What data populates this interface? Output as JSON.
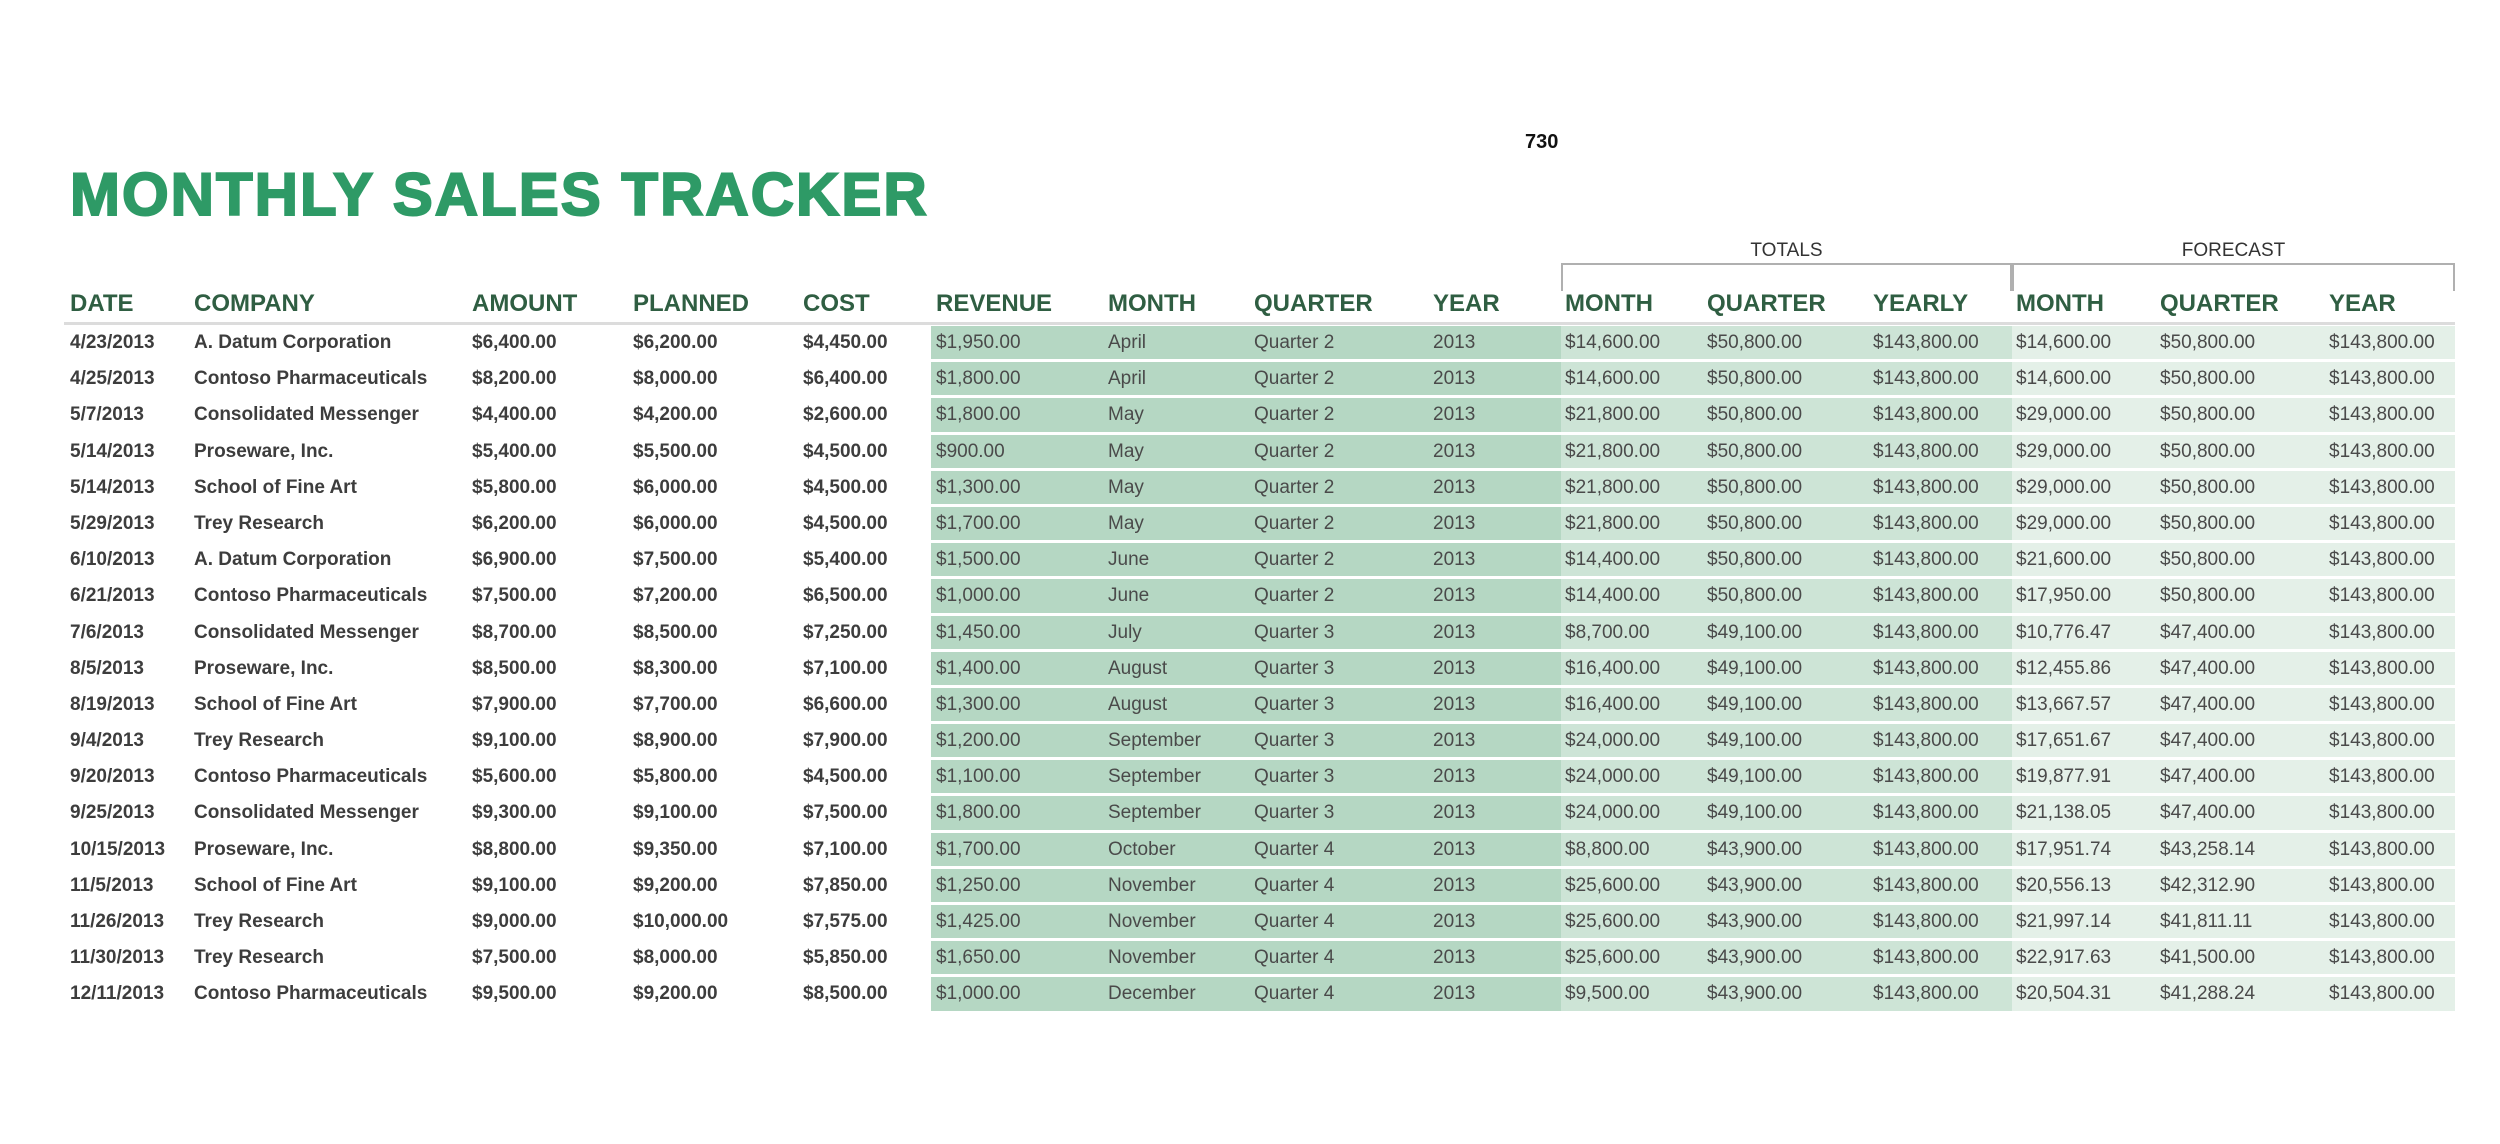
{
  "page_number": "730",
  "title": "MONTHLY SALES TRACKER",
  "groups": {
    "totals": "TOTALS",
    "forecast": "FORECAST"
  },
  "colors": {
    "title": "#2e9a66",
    "header": "#2f5e42",
    "revenue_band": "#b5d7c3",
    "totals_band": "#cde4d6",
    "forecast_band": "#e4f0e8"
  },
  "headers": [
    "DATE",
    "COMPANY",
    "AMOUNT",
    "PLANNED",
    "COST",
    "REVENUE",
    "MONTH",
    "QUARTER",
    "YEAR",
    "MONTH",
    "QUARTER",
    "YEARLY",
    "MONTH",
    "QUARTER",
    "YEAR"
  ],
  "rows": [
    [
      "4/23/2013",
      "A. Datum Corporation",
      "$6,400.00",
      "$6,200.00",
      "$4,450.00",
      "$1,950.00",
      "April",
      "Quarter 2",
      "2013",
      "$14,600.00",
      "$50,800.00",
      "$143,800.00",
      "$14,600.00",
      "$50,800.00",
      "$143,800.00"
    ],
    [
      "4/25/2013",
      "Contoso Pharmaceuticals",
      "$8,200.00",
      "$8,000.00",
      "$6,400.00",
      "$1,800.00",
      "April",
      "Quarter 2",
      "2013",
      "$14,600.00",
      "$50,800.00",
      "$143,800.00",
      "$14,600.00",
      "$50,800.00",
      "$143,800.00"
    ],
    [
      "5/7/2013",
      "Consolidated Messenger",
      "$4,400.00",
      "$4,200.00",
      "$2,600.00",
      "$1,800.00",
      "May",
      "Quarter 2",
      "2013",
      "$21,800.00",
      "$50,800.00",
      "$143,800.00",
      "$29,000.00",
      "$50,800.00",
      "$143,800.00"
    ],
    [
      "5/14/2013",
      "Proseware, Inc.",
      "$5,400.00",
      "$5,500.00",
      "$4,500.00",
      "$900.00",
      "May",
      "Quarter 2",
      "2013",
      "$21,800.00",
      "$50,800.00",
      "$143,800.00",
      "$29,000.00",
      "$50,800.00",
      "$143,800.00"
    ],
    [
      "5/14/2013",
      "School of Fine Art",
      "$5,800.00",
      "$6,000.00",
      "$4,500.00",
      "$1,300.00",
      "May",
      "Quarter 2",
      "2013",
      "$21,800.00",
      "$50,800.00",
      "$143,800.00",
      "$29,000.00",
      "$50,800.00",
      "$143,800.00"
    ],
    [
      "5/29/2013",
      "Trey Research",
      "$6,200.00",
      "$6,000.00",
      "$4,500.00",
      "$1,700.00",
      "May",
      "Quarter 2",
      "2013",
      "$21,800.00",
      "$50,800.00",
      "$143,800.00",
      "$29,000.00",
      "$50,800.00",
      "$143,800.00"
    ],
    [
      "6/10/2013",
      "A. Datum Corporation",
      "$6,900.00",
      "$7,500.00",
      "$5,400.00",
      "$1,500.00",
      "June",
      "Quarter 2",
      "2013",
      "$14,400.00",
      "$50,800.00",
      "$143,800.00",
      "$21,600.00",
      "$50,800.00",
      "$143,800.00"
    ],
    [
      "6/21/2013",
      "Contoso Pharmaceuticals",
      "$7,500.00",
      "$7,200.00",
      "$6,500.00",
      "$1,000.00",
      "June",
      "Quarter 2",
      "2013",
      "$14,400.00",
      "$50,800.00",
      "$143,800.00",
      "$17,950.00",
      "$50,800.00",
      "$143,800.00"
    ],
    [
      "7/6/2013",
      "Consolidated Messenger",
      "$8,700.00",
      "$8,500.00",
      "$7,250.00",
      "$1,450.00",
      "July",
      "Quarter 3",
      "2013",
      "$8,700.00",
      "$49,100.00",
      "$143,800.00",
      "$10,776.47",
      "$47,400.00",
      "$143,800.00"
    ],
    [
      "8/5/2013",
      "Proseware, Inc.",
      "$8,500.00",
      "$8,300.00",
      "$7,100.00",
      "$1,400.00",
      "August",
      "Quarter 3",
      "2013",
      "$16,400.00",
      "$49,100.00",
      "$143,800.00",
      "$12,455.86",
      "$47,400.00",
      "$143,800.00"
    ],
    [
      "8/19/2013",
      "School of Fine Art",
      "$7,900.00",
      "$7,700.00",
      "$6,600.00",
      "$1,300.00",
      "August",
      "Quarter 3",
      "2013",
      "$16,400.00",
      "$49,100.00",
      "$143,800.00",
      "$13,667.57",
      "$47,400.00",
      "$143,800.00"
    ],
    [
      "9/4/2013",
      "Trey Research",
      "$9,100.00",
      "$8,900.00",
      "$7,900.00",
      "$1,200.00",
      "September",
      "Quarter 3",
      "2013",
      "$24,000.00",
      "$49,100.00",
      "$143,800.00",
      "$17,651.67",
      "$47,400.00",
      "$143,800.00"
    ],
    [
      "9/20/2013",
      "Contoso Pharmaceuticals",
      "$5,600.00",
      "$5,800.00",
      "$4,500.00",
      "$1,100.00",
      "September",
      "Quarter 3",
      "2013",
      "$24,000.00",
      "$49,100.00",
      "$143,800.00",
      "$19,877.91",
      "$47,400.00",
      "$143,800.00"
    ],
    [
      "9/25/2013",
      "Consolidated Messenger",
      "$9,300.00",
      "$9,100.00",
      "$7,500.00",
      "$1,800.00",
      "September",
      "Quarter 3",
      "2013",
      "$24,000.00",
      "$49,100.00",
      "$143,800.00",
      "$21,138.05",
      "$47,400.00",
      "$143,800.00"
    ],
    [
      "10/15/2013",
      "Proseware, Inc.",
      "$8,800.00",
      "$9,350.00",
      "$7,100.00",
      "$1,700.00",
      "October",
      "Quarter 4",
      "2013",
      "$8,800.00",
      "$43,900.00",
      "$143,800.00",
      "$17,951.74",
      "$43,258.14",
      "$143,800.00"
    ],
    [
      "11/5/2013",
      "School of Fine Art",
      "$9,100.00",
      "$9,200.00",
      "$7,850.00",
      "$1,250.00",
      "November",
      "Quarter 4",
      "2013",
      "$25,600.00",
      "$43,900.00",
      "$143,800.00",
      "$20,556.13",
      "$42,312.90",
      "$143,800.00"
    ],
    [
      "11/26/2013",
      "Trey Research",
      "$9,000.00",
      "$10,000.00",
      "$7,575.00",
      "$1,425.00",
      "November",
      "Quarter 4",
      "2013",
      "$25,600.00",
      "$43,900.00",
      "$143,800.00",
      "$21,997.14",
      "$41,811.11",
      "$143,800.00"
    ],
    [
      "11/30/2013",
      "Trey Research",
      "$7,500.00",
      "$8,000.00",
      "$5,850.00",
      "$1,650.00",
      "November",
      "Quarter 4",
      "2013",
      "$25,600.00",
      "$43,900.00",
      "$143,800.00",
      "$22,917.63",
      "$41,500.00",
      "$143,800.00"
    ],
    [
      "12/11/2013",
      "Contoso Pharmaceuticals",
      "$9,500.00",
      "$9,200.00",
      "$8,500.00",
      "$1,000.00",
      "December",
      "Quarter 4",
      "2013",
      "$9,500.00",
      "$43,900.00",
      "$143,800.00",
      "$20,504.31",
      "$41,288.24",
      "$143,800.00"
    ]
  ]
}
